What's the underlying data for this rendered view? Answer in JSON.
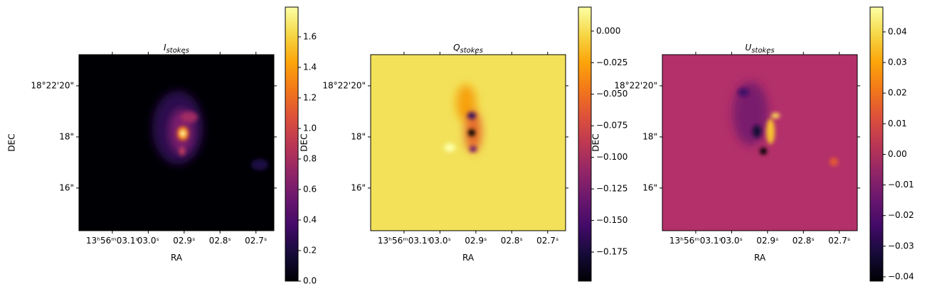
{
  "chart_data": [
    {
      "type": "heatmap",
      "title": {
        "main": "I",
        "sub": "stokes"
      },
      "xlabel": "RA",
      "ylabel": "DEC",
      "colormap": "inferno",
      "xlim": [
        3.193,
        2.65
      ],
      "xticks": [
        {
          "value": 3.1,
          "label": "13ʰ56ᵐ03.1ˢ"
        },
        {
          "value": 3.0,
          "label": "03.0ˢ"
        },
        {
          "value": 2.9,
          "label": "02.9ˢ"
        },
        {
          "value": 2.8,
          "label": "02.8ˢ"
        },
        {
          "value": 2.7,
          "label": "02.7ˢ"
        }
      ],
      "ylim": [
        14.33,
        21.22
      ],
      "yticks": [
        {
          "value": 20,
          "label": "18°22'20\""
        },
        {
          "value": 18,
          "label": "18\""
        },
        {
          "value": 16,
          "label": "16\""
        }
      ],
      "clim": [
        0,
        1.795
      ],
      "cticks": [
        {
          "value": 0,
          "label": "0.0"
        },
        0.2,
        0.4,
        0.6,
        0.8,
        {
          "value": 1,
          "label": "1.0"
        },
        1.2,
        1.4,
        1.6
      ]
    },
    {
      "type": "heatmap",
      "title": {
        "main": "Q",
        "sub": "stokes"
      },
      "xlabel": "RA",
      "ylabel": "DEC",
      "colormap": "inferno",
      "xlim": [
        3.193,
        2.65
      ],
      "xticks": [
        {
          "value": 3.1,
          "label": "13ʰ56ᵐ03.1ˢ"
        },
        {
          "value": 3.0,
          "label": "03.0ˢ"
        },
        {
          "value": 2.9,
          "label": "02.9ˢ"
        },
        {
          "value": 2.8,
          "label": "02.8ˢ"
        },
        {
          "value": 2.7,
          "label": "02.7ˢ"
        }
      ],
      "ylim": [
        14.33,
        21.22
      ],
      "yticks": [
        {
          "value": 20,
          "label": "18°22'20\""
        },
        {
          "value": 18,
          "label": "18\""
        },
        {
          "value": 16,
          "label": "16\""
        }
      ],
      "clim": [
        -0.198,
        0.019
      ],
      "cticks": [
        {
          "value": 0,
          "label": "0.000"
        },
        {
          "value": -0.025,
          "label": "−0.025"
        },
        {
          "value": -0.05,
          "label": "−0.050"
        },
        {
          "value": -0.075,
          "label": "−0.075"
        },
        {
          "value": -0.1,
          "label": "−0.100"
        },
        {
          "value": -0.125,
          "label": "−0.125"
        },
        {
          "value": -0.15,
          "label": "−0.150"
        },
        {
          "value": -0.175,
          "label": "−0.175"
        }
      ]
    },
    {
      "type": "heatmap",
      "title": {
        "main": "U",
        "sub": "stokes"
      },
      "xlabel": "RA",
      "ylabel": "DEC",
      "colormap": "inferno",
      "xlim": [
        3.193,
        2.65
      ],
      "xticks": [
        {
          "value": 3.1,
          "label": "13ʰ56ᵐ03.1ˢ"
        },
        {
          "value": 3.0,
          "label": "03.0ˢ"
        },
        {
          "value": 2.9,
          "label": "02.9ˢ"
        },
        {
          "value": 2.8,
          "label": "02.8ˢ"
        },
        {
          "value": 2.7,
          "label": "02.7ˢ"
        }
      ],
      "ylim": [
        14.33,
        21.22
      ],
      "yticks": [
        {
          "value": 20,
          "label": "18°22'20\""
        },
        {
          "value": 18,
          "label": "18\""
        },
        {
          "value": 16,
          "label": "16\""
        }
      ],
      "clim": [
        -0.0414,
        0.0481
      ],
      "cticks": [
        {
          "value": 0.04,
          "label": "0.04"
        },
        {
          "value": 0.03,
          "label": "0.03"
        },
        {
          "value": 0.02,
          "label": "0.02"
        },
        {
          "value": 0.01,
          "label": "0.01"
        },
        {
          "value": 0,
          "label": "0.00"
        },
        {
          "value": -0.01,
          "label": "−0.01"
        },
        {
          "value": -0.02,
          "label": "−0.02"
        },
        {
          "value": -0.03,
          "label": "−0.03"
        },
        {
          "value": -0.04,
          "label": "−0.04"
        }
      ]
    }
  ]
}
